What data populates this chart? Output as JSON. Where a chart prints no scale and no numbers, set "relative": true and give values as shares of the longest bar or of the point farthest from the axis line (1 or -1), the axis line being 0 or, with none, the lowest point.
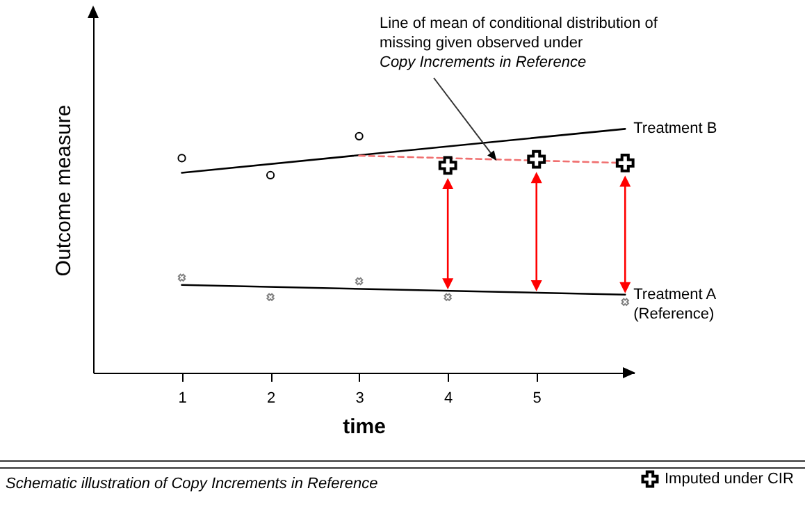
{
  "chart_data": {
    "type": "line",
    "relative": true,
    "xlabel": "time",
    "ylabel": "Outcome measure",
    "xlim": [
      0,
      6.1
    ],
    "xticks": [
      1,
      2,
      3,
      4,
      5
    ],
    "grid": false,
    "legend": "bottom right",
    "annotations": [
      {
        "text": "Line of mean of conditional distribution of\nmissing given observed under\nCopy Increments in Reference",
        "x": 4.55,
        "y": 0.87
      },
      "Schematic illustration of Copy Increments in Reference"
    ],
    "series": [
      {
        "name": "Treatment B",
        "type": "line",
        "color": "#000000",
        "x": [
          1,
          6
        ],
        "values": [
          0.82,
          1.0
        ]
      },
      {
        "type": "scatter",
        "marker": "circle",
        "color": "#000000",
        "x": [
          1,
          2,
          3
        ],
        "values": [
          0.88,
          0.81,
          0.97
        ]
      },
      {
        "type": "line",
        "line_style": "dashed",
        "color": "#f07070",
        "x": [
          3,
          6
        ],
        "values": [
          0.89,
          0.86
        ]
      },
      {
        "name": "Imputed under CIR",
        "type": "scatter",
        "marker": "cross",
        "color": "#000000",
        "x": [
          4,
          5,
          6
        ],
        "values": [
          0.85,
          0.875,
          0.86
        ]
      },
      {
        "name": "Treatment A\n(Reference)",
        "type": "line",
        "color": "#000000",
        "x": [
          1,
          6
        ],
        "values": [
          0.36,
          0.32
        ]
      },
      {
        "type": "scatter",
        "marker": "cross",
        "color": "#808080",
        "x": [
          1,
          2,
          3,
          4,
          6
        ],
        "values": [
          0.39,
          0.31,
          0.375,
          0.31,
          0.29
        ]
      }
    ]
  }
}
